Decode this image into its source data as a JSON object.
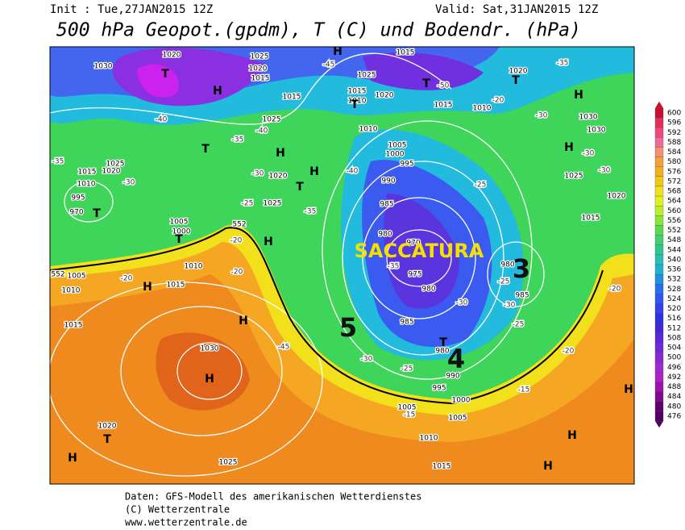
{
  "header": {
    "init": "Init : Tue,27JAN2015 12Z",
    "valid": "Valid: Sat,31JAN2015 12Z",
    "title": "500 hPa Geopot.(gpdm), T (C) und Bodendr. (hPa)"
  },
  "footer": {
    "line1": "Daten: GFS-Modell des amerikanischen Wetterdienstes",
    "line2": "(C) Wetterzentrale",
    "line3": "www.wetterzentrale.de"
  },
  "legend": {
    "values": [
      600,
      596,
      592,
      588,
      584,
      580,
      576,
      572,
      568,
      564,
      560,
      556,
      552,
      548,
      544,
      540,
      536,
      532,
      528,
      524,
      520,
      516,
      512,
      508,
      504,
      500,
      496,
      492,
      488,
      484,
      480,
      476
    ]
  },
  "annotations": [
    "SACCATURA",
    "3",
    "4",
    "5"
  ],
  "map": {
    "labels": [
      "1030",
      "1020",
      "1025",
      "1020",
      "1015",
      "1015",
      "1025",
      "1020",
      "1025",
      "1015",
      "1010",
      "1025",
      "1015",
      "1020",
      "1010",
      "1005",
      "1000",
      "995",
      "990",
      "985",
      "980",
      "970",
      "975",
      "980",
      "985",
      "980",
      "990",
      "995",
      "1000",
      "1005",
      "1005",
      "1010",
      "1015",
      "1025",
      "1020",
      "1030",
      "1015",
      "1010",
      "1005",
      "1010",
      "1015",
      "1005",
      "1000",
      "1020",
      "1010",
      "1015",
      "1030",
      "1030",
      "1025",
      "1020",
      "1015",
      "980",
      "985",
      "1025",
      "1020",
      "1015",
      "1010",
      "995",
      "970",
      "552",
      "552"
    ],
    "temps": [
      "-35",
      "-40",
      "-35",
      "-30",
      "-25",
      "-20",
      "-20",
      "-20",
      "-40",
      "-45",
      "-40",
      "-35",
      "-35",
      "-30",
      "-25",
      "-20",
      "-30",
      "-30",
      "-30",
      "-25",
      "-30",
      "-25",
      "-20",
      "-20",
      "-15",
      "-15",
      "-25",
      "-30",
      "-45",
      "-50",
      "-35",
      "-30"
    ],
    "centers": [
      "T",
      "T",
      "H",
      "H",
      "T",
      "T",
      "H",
      "H",
      "T",
      "T",
      "H",
      "H",
      "H",
      "T",
      "H",
      "H",
      "T",
      "H",
      "H",
      "H",
      "H",
      "T",
      "H",
      "T"
    ]
  }
}
